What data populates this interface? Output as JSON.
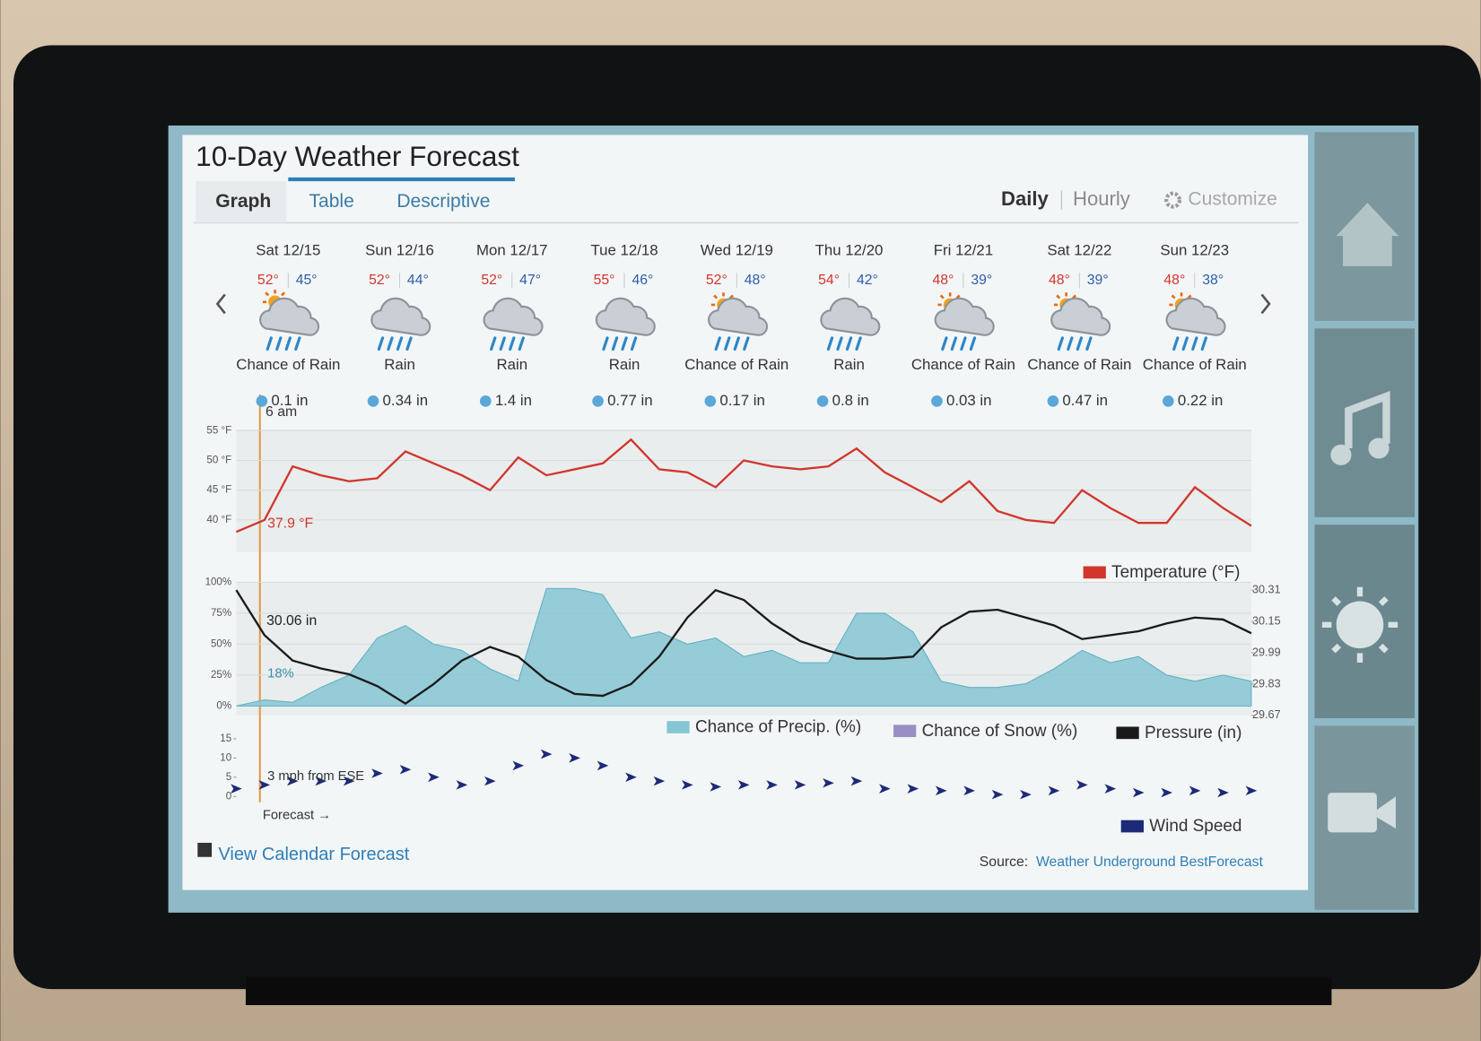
{
  "header": {
    "title": "10-Day Weather Forecast"
  },
  "tabs": [
    "Graph",
    "Table",
    "Descriptive"
  ],
  "view_modes": [
    "Daily",
    "Hourly"
  ],
  "customize": "Customize",
  "days": [
    {
      "date": "Sat 12/15",
      "high": "52°",
      "low": "45°",
      "condition": "Chance of Rain",
      "precip": "0.1 in"
    },
    {
      "date": "Sun 12/16",
      "high": "52°",
      "low": "44°",
      "condition": "Rain",
      "precip": "0.34 in"
    },
    {
      "date": "Mon 12/17",
      "high": "52°",
      "low": "47°",
      "condition": "Rain",
      "precip": "1.4 in"
    },
    {
      "date": "Tue 12/18",
      "high": "55°",
      "low": "46°",
      "condition": "Rain",
      "precip": "0.77 in"
    },
    {
      "date": "Wed 12/19",
      "high": "52°",
      "low": "48°",
      "condition": "Chance of Rain",
      "precip": "0.17 in"
    },
    {
      "date": "Thu 12/20",
      "high": "54°",
      "low": "42°",
      "condition": "Rain",
      "precip": "0.8 in"
    },
    {
      "date": "Fri 12/21",
      "high": "48°",
      "low": "39°",
      "condition": "Chance of Rain",
      "precip": "0.03 in"
    },
    {
      "date": "Sat 12/22",
      "high": "48°",
      "low": "39°",
      "condition": "Chance of Rain",
      "precip": "0.47 in"
    },
    {
      "date": "Sun 12/23",
      "high": "48°",
      "low": "38°",
      "condition": "Chance of Rain",
      "precip": "0.22 in"
    }
  ],
  "chart_data": [
    {
      "type": "line",
      "series": [
        {
          "name": "Temperature (°F)",
          "color": "#d2352c",
          "values": [
            38,
            40,
            49,
            47.5,
            46.5,
            47,
            51.5,
            49.5,
            47.5,
            45,
            50.5,
            47.5,
            48.5,
            49.5,
            53.5,
            48.5,
            48,
            45.5,
            50,
            49,
            48.5,
            49,
            52,
            48,
            45.5,
            43,
            46.5,
            41.5,
            40,
            39.5,
            45,
            42,
            39.5,
            39.5,
            45.5,
            42,
            39
          ]
        }
      ],
      "ylim": [
        34.6,
        55.2
      ],
      "yticks": [
        {
          "value": 55,
          "label": "55 °F"
        },
        {
          "value": 50,
          "label": "50 °F"
        },
        {
          "value": 45,
          "label": "45 °F"
        },
        {
          "value": 40,
          "label": "40 °F"
        }
      ],
      "grid": true,
      "annotations": [
        "6 am",
        "37.9 °F"
      ]
    },
    {
      "type": "combo",
      "series": [
        {
          "name": "Chance of Precip. (%)",
          "color": "#86c6d4",
          "kind": "area",
          "values": [
            0,
            5,
            3,
            15,
            25,
            55,
            65,
            50,
            45,
            30,
            20,
            95,
            95,
            90,
            55,
            60,
            50,
            55,
            40,
            45,
            35,
            35,
            75,
            75,
            60,
            20,
            15,
            15,
            18,
            30,
            45,
            35,
            40,
            25,
            20,
            25,
            20
          ]
        },
        {
          "name": "Chance of Snow (%)",
          "color": "#9a8fc4",
          "kind": "area",
          "values": [
            null,
            null,
            null,
            null,
            null,
            null,
            null,
            null,
            null,
            null,
            null,
            null,
            null,
            null,
            null,
            null,
            null,
            null,
            null,
            null,
            null,
            null,
            null,
            null,
            null,
            null,
            null,
            null,
            null,
            null,
            null,
            null,
            null,
            null,
            null,
            null,
            null
          ]
        },
        {
          "name": "Pressure (in)",
          "color": "#1a1a1a",
          "kind": "line",
          "axis": "y2",
          "values": [
            30.31,
            30.08,
            29.95,
            29.91,
            29.88,
            29.82,
            29.73,
            29.83,
            29.95,
            30.02,
            29.97,
            29.85,
            29.78,
            29.77,
            29.83,
            29.97,
            30.17,
            30.31,
            30.26,
            30.14,
            30.05,
            30.0,
            29.96,
            29.96,
            29.97,
            30.12,
            30.2,
            30.21,
            30.17,
            30.13,
            30.06,
            30.08,
            30.1,
            30.14,
            30.17,
            30.16,
            30.09
          ]
        }
      ],
      "ylim": [
        -7.6,
        100
      ],
      "yticks": [
        {
          "value": 100,
          "label": "100%"
        },
        {
          "value": 75,
          "label": "75%"
        },
        {
          "value": 50,
          "label": "50%"
        },
        {
          "value": 25,
          "label": "25%"
        },
        {
          "value": 0,
          "label": "0%"
        }
      ],
      "y2lim": [
        29.67,
        30.35
      ],
      "y2ticks": [
        30.31,
        30.15,
        29.99,
        29.83,
        29.67
      ],
      "grid": true,
      "annotations": [
        "30.06 in",
        "18%"
      ]
    },
    {
      "type": "line",
      "series": [
        {
          "name": "Wind Speed",
          "color": "#1c2a78",
          "marker": "arrow",
          "values": [
            2,
            3,
            4,
            4,
            4,
            6,
            7,
            5,
            3,
            4,
            8,
            11,
            10,
            8,
            5,
            4,
            3,
            2.5,
            3,
            3,
            3,
            3.5,
            4,
            2,
            2,
            1.5,
            1.5,
            0.5,
            0.5,
            1.5,
            3,
            2,
            1,
            1,
            1.5,
            1,
            1.5
          ]
        }
      ],
      "ylim": [
        -1.5,
        16.9
      ],
      "yticks": [
        15,
        10,
        5,
        0
      ],
      "grid": false,
      "annotations": [
        "3 mph from ESE",
        "Forecast →"
      ]
    }
  ],
  "footer": {
    "calendar_link": "View Calendar Forecast",
    "source_label": "Source:",
    "source_link": "Weather Underground BestForecast"
  }
}
